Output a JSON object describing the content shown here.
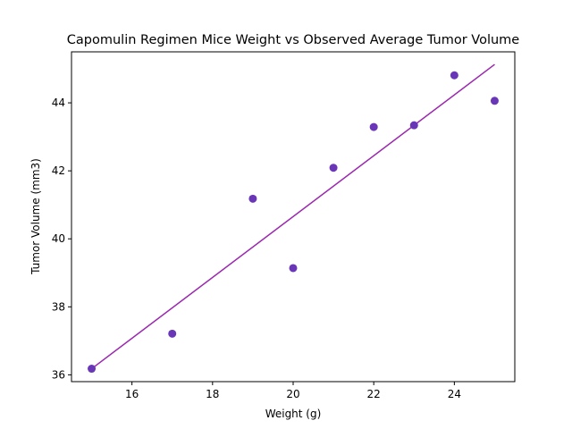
{
  "chart_data": {
    "type": "scatter",
    "title": "Capomulin Regimen Mice Weight vs Observed Average Tumor Volume",
    "xlabel": "Weight (g)",
    "ylabel": "Tumor Volume (mm3)",
    "xlim": [
      14.5,
      25.5
    ],
    "ylim": [
      35.8,
      45.5
    ],
    "xticks": [
      16,
      18,
      20,
      22,
      24
    ],
    "yticks": [
      36,
      38,
      40,
      42,
      44
    ],
    "grid": false,
    "points": [
      {
        "x": 15,
        "y": 36.18
      },
      {
        "x": 17,
        "y": 37.21
      },
      {
        "x": 19,
        "y": 41.18
      },
      {
        "x": 20,
        "y": 39.14
      },
      {
        "x": 21,
        "y": 42.09
      },
      {
        "x": 22,
        "y": 43.29
      },
      {
        "x": 23,
        "y": 43.34
      },
      {
        "x": 24,
        "y": 44.81
      },
      {
        "x": 25,
        "y": 44.06
      }
    ],
    "regression": {
      "x": [
        15,
        25
      ],
      "y": [
        36.18,
        45.13
      ]
    },
    "colors": {
      "points": "#6a36b8",
      "line": "#9b27af"
    }
  }
}
